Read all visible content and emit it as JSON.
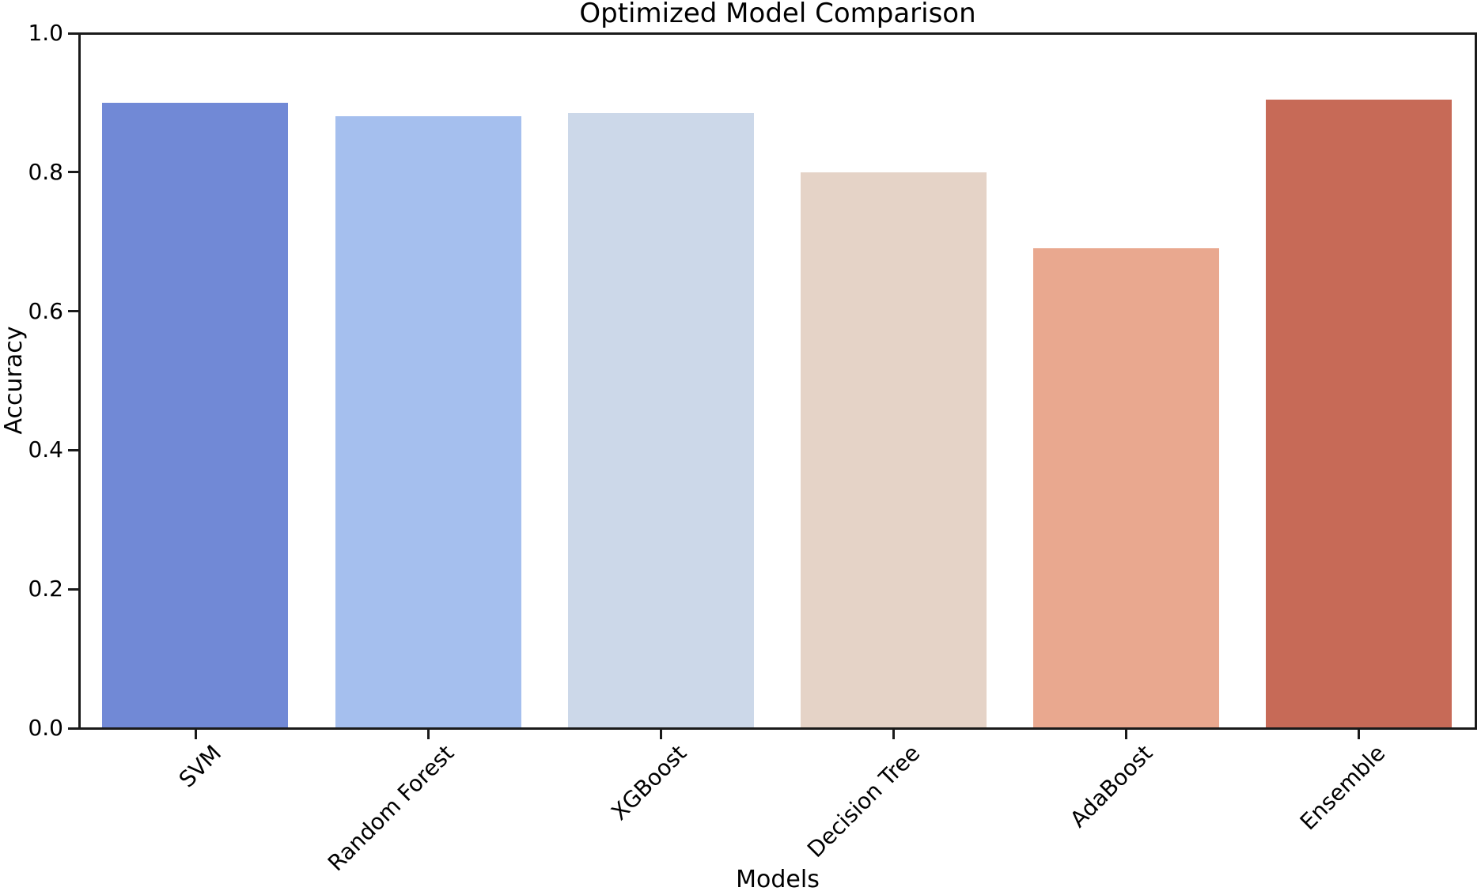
{
  "chart_data": {
    "type": "bar",
    "title": "Optimized Model Comparison",
    "xlabel": "Models",
    "ylabel": "Accuracy",
    "categories": [
      "SVM",
      "Random Forest",
      "XGBoost",
      "Decision Tree",
      "AdaBoost",
      "Ensemble"
    ],
    "values": [
      0.9,
      0.88,
      0.885,
      0.8,
      0.69,
      0.905
    ],
    "bar_colors": [
      "#7189d6",
      "#a5bfee",
      "#ccd8e9",
      "#e5d3c7",
      "#e9a88f",
      "#c76a57"
    ],
    "ylim": [
      0.0,
      1.0
    ],
    "ytick_labels": [
      "0.0",
      "0.2",
      "0.4",
      "0.6",
      "0.8",
      "1.0"
    ],
    "ytick_values": [
      0.0,
      0.2,
      0.4,
      0.6,
      0.8,
      1.0
    ],
    "x_tick_rotation_deg": 45,
    "grid": false,
    "legend": "none",
    "spine_color": "#1a1a1a",
    "background_color": "#ffffff"
  }
}
